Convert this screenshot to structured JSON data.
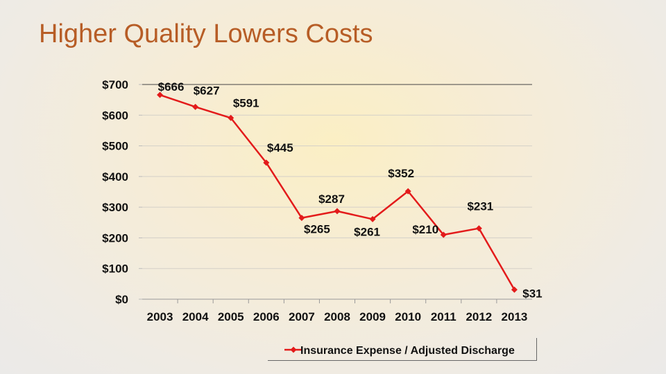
{
  "slide": {
    "title": "Higher Quality Lowers Costs"
  },
  "colors": {
    "title": "#b75d26",
    "series": "#e31b1b",
    "grid": "#d4d0c8",
    "axis": "#000000"
  },
  "chart_data": {
    "type": "line",
    "title": "",
    "xlabel": "",
    "ylabel": "",
    "x": [
      "2003",
      "2004",
      "2005",
      "2006",
      "2007",
      "2008",
      "2009",
      "2010",
      "2011",
      "2012",
      "2013"
    ],
    "series": [
      {
        "name": "Insurance Expense / Adjusted Discharge",
        "values": [
          666,
          627,
          591,
          445,
          265,
          287,
          261,
          352,
          210,
          231,
          31
        ],
        "labels": [
          "$666",
          "$627",
          "$591",
          "$445",
          "$265",
          "$287",
          "$261",
          "$352",
          "$210",
          "$231",
          "$31"
        ],
        "marker": "diamond"
      }
    ],
    "ylim": [
      0,
      700
    ],
    "yticks": [
      0,
      100,
      200,
      300,
      400,
      500,
      600,
      700
    ],
    "ytick_labels": [
      "$0",
      "$100",
      "$200",
      "$300",
      "$400",
      "$500",
      "$600",
      "$700"
    ],
    "grid": true,
    "legend": "bottom"
  }
}
